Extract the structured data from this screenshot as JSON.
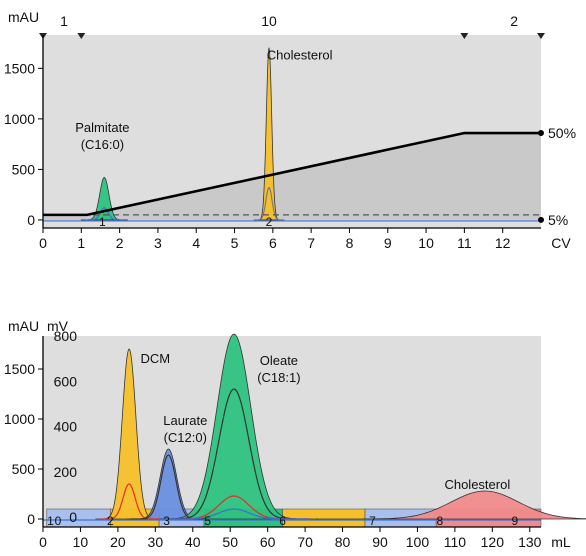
{
  "chart_data": [
    {
      "type": "area",
      "xlabel": "CV",
      "y_unit": "mAU",
      "xlim": [
        0,
        13
      ],
      "ylim": [
        -80,
        1830
      ],
      "x_ticks": [
        0,
        1,
        2,
        3,
        4,
        5,
        6,
        7,
        8,
        9,
        10,
        11,
        12
      ],
      "y_ticks": [
        0,
        500,
        1000,
        1500
      ],
      "top_markers": [
        {
          "label": "1",
          "x": 0.55
        },
        {
          "label": "10",
          "x": 5.9
        },
        {
          "label": "2",
          "x": 12.3
        }
      ],
      "marker_triangles": [
        0,
        1,
        11,
        13
      ],
      "fraction_labels": [
        {
          "label": "1",
          "x": 1.55
        },
        {
          "label": "2",
          "x": 5.9
        }
      ],
      "gradient": {
        "points": [
          [
            0,
            50
          ],
          [
            1.15,
            50
          ],
          [
            11,
            860
          ],
          [
            13,
            860
          ]
        ],
        "end_label_high": "50%",
        "end_label_low": "5%",
        "dashed_level": 50
      },
      "peaks": [
        {
          "name": "Palmitate",
          "sub": "(C16:0)",
          "color": "#2ec27e",
          "center": 1.6,
          "height": 420,
          "width": 0.12,
          "label_x": 1.55,
          "label_y": 870
        },
        {
          "name": "Cholesterol",
          "sub": "",
          "color": "#f5c02a",
          "center": 5.9,
          "height": 1700,
          "width": 0.07,
          "label_x": 6.7,
          "label_y": 1590
        }
      ],
      "inner_traces": [
        {
          "color": "#3b6fd6",
          "center": 1.6,
          "height": 120,
          "width": 0.1
        },
        {
          "color": "#7a7a7a",
          "center": 5.9,
          "height": 320,
          "width": 0.08
        }
      ]
    },
    {
      "type": "area",
      "xlabel": "mL",
      "y_unit": "mAU",
      "y2_unit": "mV",
      "xlim": [
        0,
        133
      ],
      "ylim": [
        -80,
        1830
      ],
      "y2lim": [
        0,
        800
      ],
      "x_ticks": [
        0,
        10,
        20,
        30,
        40,
        50,
        60,
        70,
        80,
        90,
        100,
        110,
        120,
        130
      ],
      "y_ticks": [
        0,
        500,
        1000,
        1500
      ],
      "y2_ticks": [
        0,
        200,
        400,
        600,
        800
      ],
      "fraction_labels": [
        {
          "label": "1",
          "x": 2
        },
        {
          "label": "0",
          "x": 4
        },
        {
          "label": "2",
          "x": 18
        },
        {
          "label": "3",
          "x": 33
        },
        {
          "label": "5",
          "x": 44
        },
        {
          "label": "6",
          "x": 64
        },
        {
          "label": "7",
          "x": 88
        },
        {
          "label": "8",
          "x": 106
        },
        {
          "label": "9",
          "x": 126
        }
      ],
      "fraction_bands": [
        {
          "start": 1,
          "end": 18,
          "color": "#a9c0ee"
        },
        {
          "start": 18,
          "end": 31,
          "color": "#f5c02a"
        },
        {
          "start": 31,
          "end": 43,
          "color": "#a9c0ee"
        },
        {
          "start": 43,
          "end": 64,
          "color": "#2ec27e"
        },
        {
          "start": 64,
          "end": 86,
          "color": "#f5c02a"
        },
        {
          "start": 86,
          "end": 105,
          "color": "#a9c0ee"
        },
        {
          "start": 105,
          "end": 133,
          "color": "#f08b8b"
        }
      ],
      "peaks": [
        {
          "name": "DCM",
          "sub": "",
          "color": "#f5c02a",
          "center": 23,
          "height": 1700,
          "width": 1.8,
          "label_x": 30,
          "label_y": 1560
        },
        {
          "name": "Laurate",
          "sub": "(C12:0)",
          "color": "#6a8fe0",
          "center": 33.5,
          "height": 700,
          "width": 2.2,
          "label_x": 38,
          "label_y": 940
        },
        {
          "name": "Oleate",
          "sub": "(C18:1)",
          "color": "#2ec27e",
          "center": 51,
          "height": 1850,
          "width": 4.5,
          "label_x": 63,
          "label_y": 1540
        },
        {
          "name": "Cholesterol",
          "sub": "",
          "color": "#f08b8b",
          "center": 118,
          "height": 280,
          "width": 9,
          "label_x": 116,
          "label_y": 300
        }
      ],
      "inner_traces": [
        {
          "color": "#e0302a",
          "center": 23,
          "height": 350,
          "width": 1.6
        },
        {
          "color": "#333333",
          "center": 33.5,
          "height": 640,
          "width": 2
        },
        {
          "color": "#333333",
          "center": 51,
          "height": 1300,
          "width": 4
        },
        {
          "color": "#e0302a",
          "center": 51,
          "height": 230,
          "width": 4
        },
        {
          "color": "#3b6fd6",
          "center": 51,
          "height": 100,
          "width": 4
        }
      ]
    }
  ]
}
